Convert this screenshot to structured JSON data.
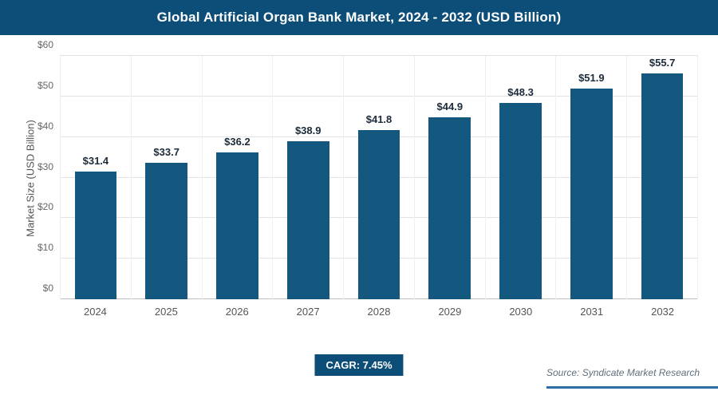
{
  "header": {
    "title": "Global Artificial Organ Bank Market, 2024 - 2032 (USD Billion)"
  },
  "chart_data": {
    "type": "bar",
    "title": "Global Artificial Organ Bank Market, 2024 - 2032 (USD Billion)",
    "categories": [
      "2024",
      "2025",
      "2026",
      "2027",
      "2028",
      "2029",
      "2030",
      "2031",
      "2032"
    ],
    "values": [
      31.4,
      33.7,
      36.2,
      38.9,
      41.8,
      44.9,
      48.3,
      51.9,
      55.7
    ],
    "value_labels": [
      "$31.4",
      "$33.7",
      "$36.2",
      "$38.9",
      "$41.8",
      "$44.9",
      "$48.3",
      "$51.9",
      "$55.7"
    ],
    "xlabel": "",
    "ylabel": "Market Size (USD Billion)",
    "ylim": [
      0,
      60
    ],
    "ytick_step": 10,
    "ytick_labels": [
      "$0",
      "$10",
      "$20",
      "$30",
      "$40",
      "$50",
      "$60"
    ],
    "bar_color": "#14587f",
    "grid": true,
    "legend_position": "none"
  },
  "footer": {
    "cagr_label": "CAGR: 7.45%",
    "source": "Source: Syndicate Market Research"
  },
  "colors": {
    "accent": "#0d4e78",
    "bar": "#14587f",
    "source_line": "#2e6da4"
  }
}
